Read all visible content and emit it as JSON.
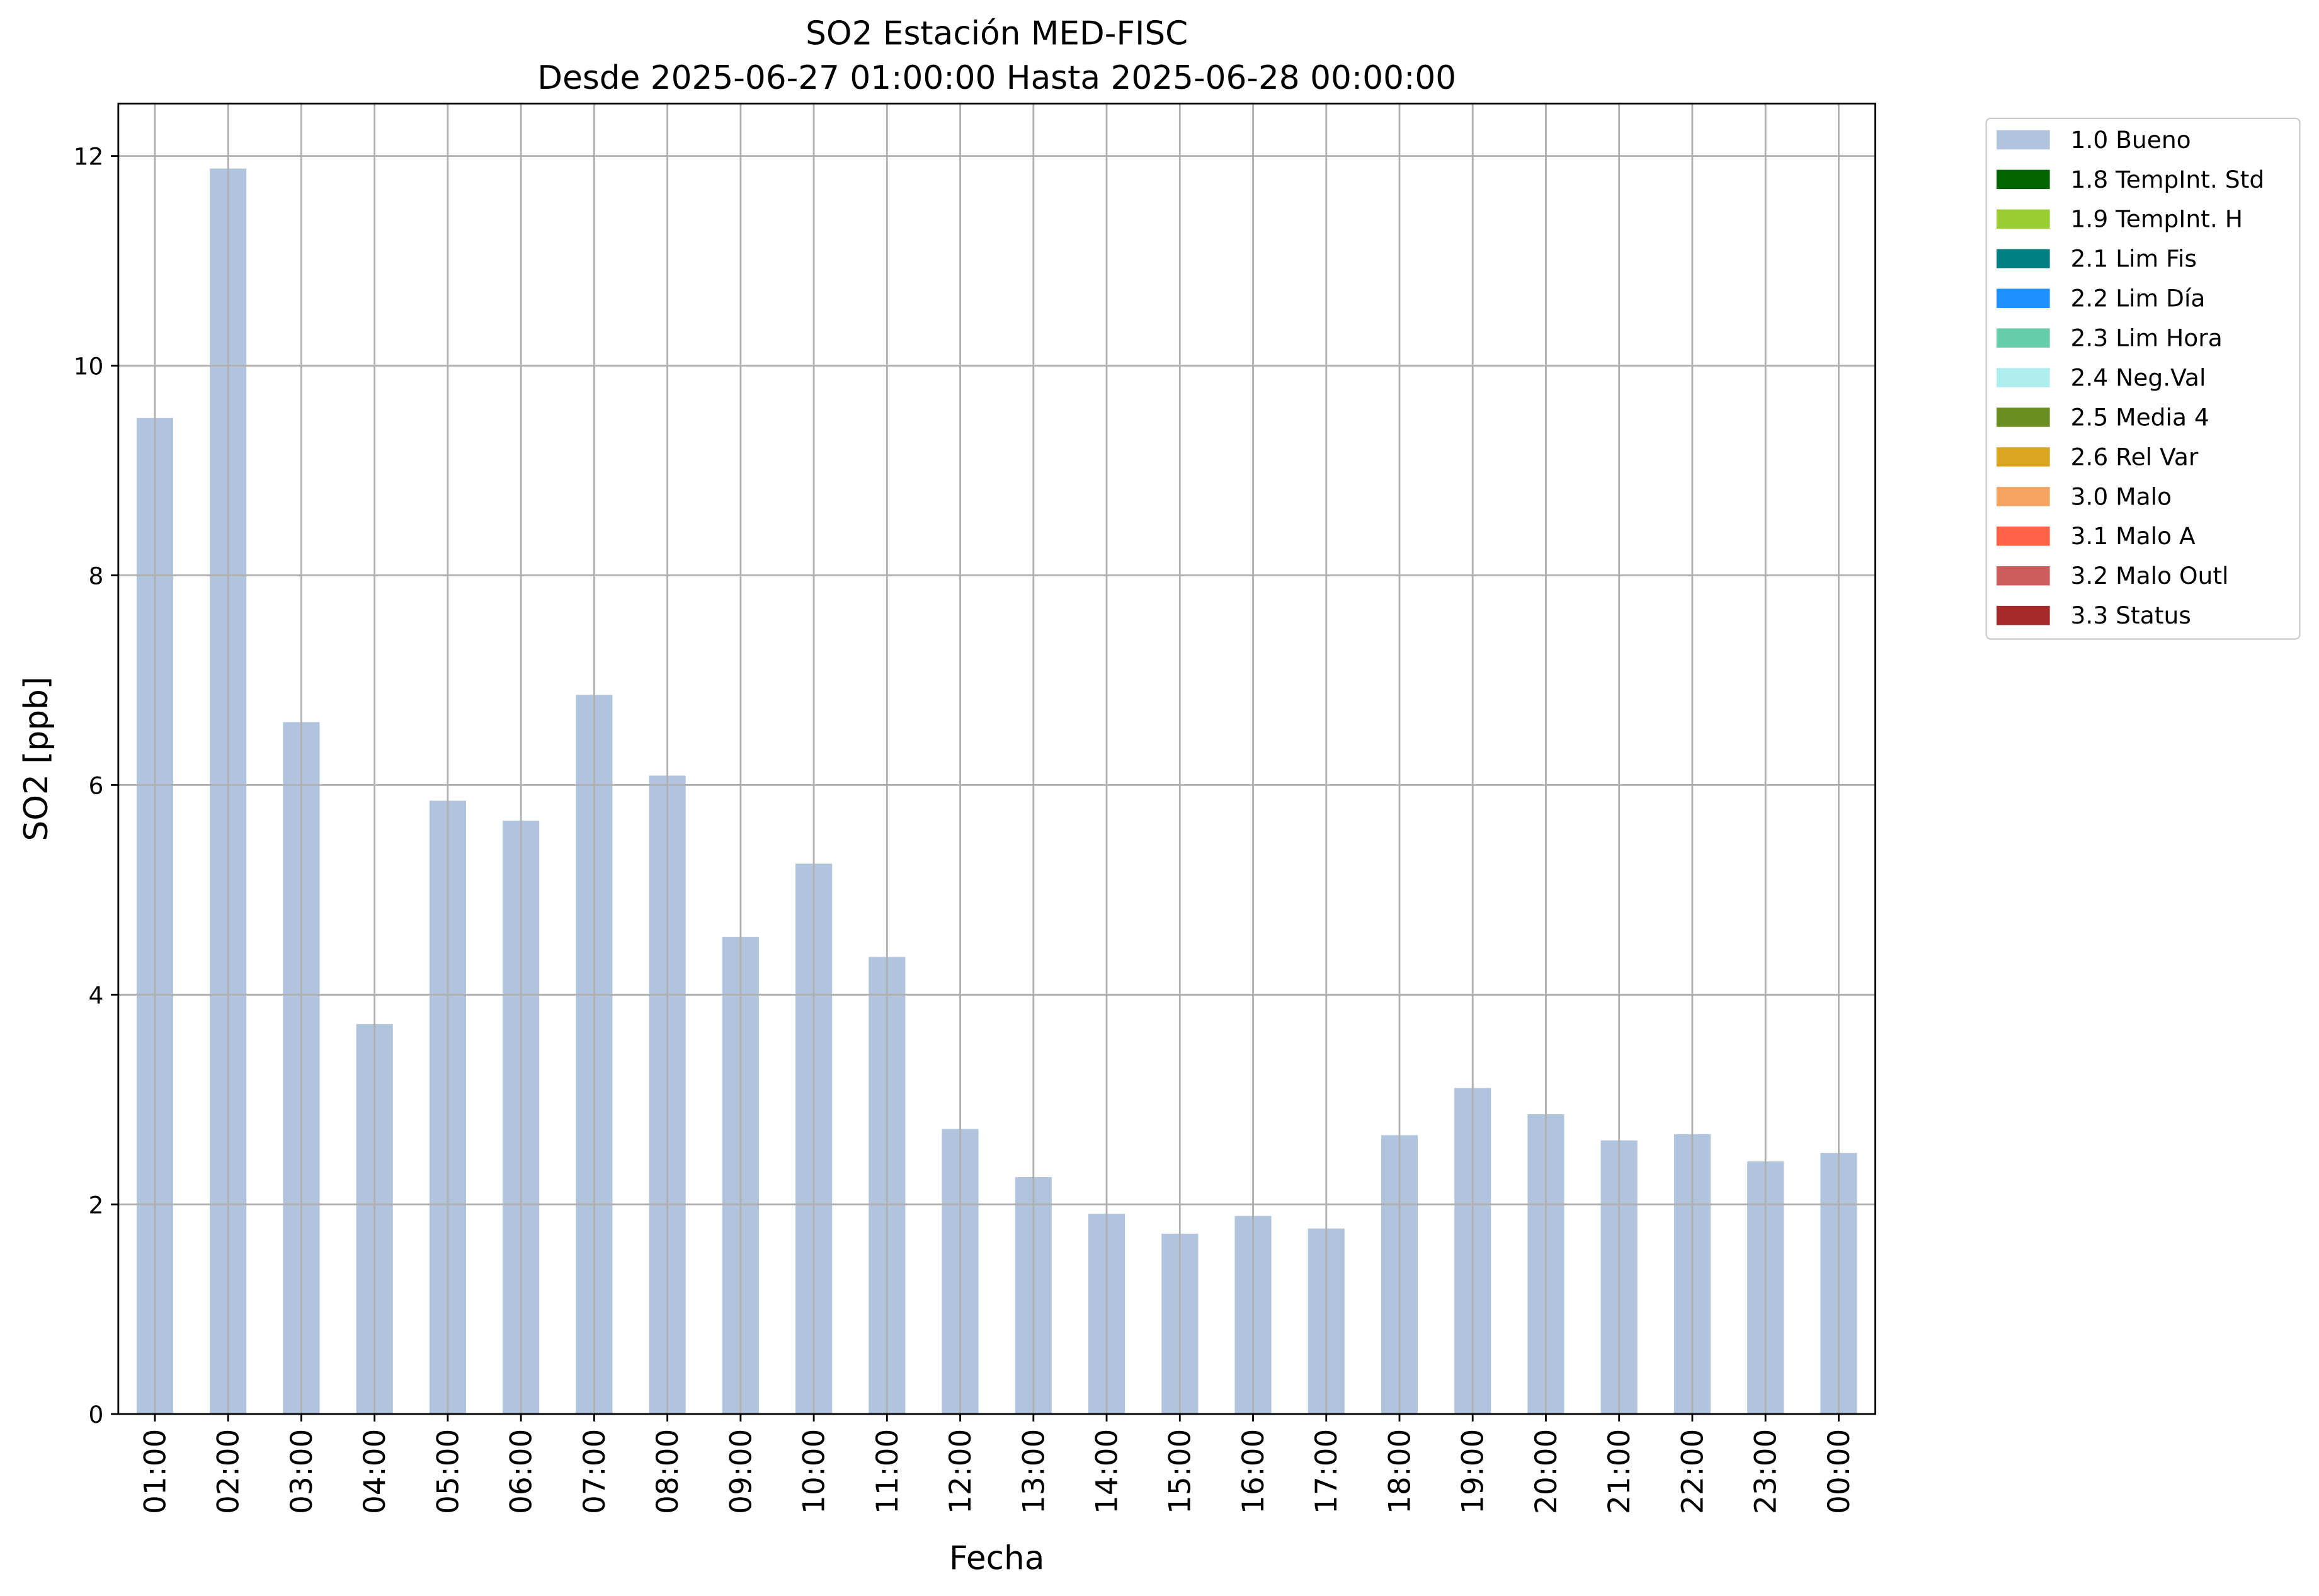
{
  "chart_data": {
    "type": "bar",
    "title": "SO2 Estación MED-FISC",
    "subtitle": "Desde 2025-06-27 01:00:00 Hasta 2025-06-28 00:00:00",
    "x_label": "Fecha",
    "y_label": "SO2 [ppb]",
    "categories": [
      "01:00",
      "02:00",
      "03:00",
      "04:00",
      "05:00",
      "06:00",
      "07:00",
      "08:00",
      "09:00",
      "10:00",
      "11:00",
      "12:00",
      "13:00",
      "14:00",
      "15:00",
      "16:00",
      "17:00",
      "18:00",
      "19:00",
      "20:00",
      "21:00",
      "22:00",
      "23:00",
      "00:00"
    ],
    "series": [
      {
        "name": "1.0 Bueno",
        "color": "#b0c4de",
        "values": [
          9.5,
          11.88,
          6.6,
          3.72,
          5.85,
          5.66,
          6.86,
          6.09,
          4.55,
          5.25,
          4.36,
          2.72,
          2.26,
          1.91,
          1.72,
          1.89,
          1.77,
          2.66,
          3.11,
          2.86,
          2.61,
          2.67,
          2.41,
          2.49
        ]
      },
      {
        "name": "1.8 TempInt. Std",
        "color": "#006400",
        "values": [
          0,
          0,
          0,
          0,
          0,
          0,
          0,
          0,
          0,
          0,
          0,
          0,
          0,
          0,
          0,
          0,
          0,
          0,
          0,
          0,
          0,
          0,
          0,
          0
        ]
      },
      {
        "name": "1.9 TempInt. H",
        "color": "#9acd32",
        "values": [
          0,
          0,
          0,
          0,
          0,
          0,
          0,
          0,
          0,
          0,
          0,
          0,
          0,
          0,
          0,
          0,
          0,
          0,
          0,
          0,
          0,
          0,
          0,
          0
        ]
      },
      {
        "name": "2.1 Lim Fis",
        "color": "#008080",
        "values": [
          0,
          0,
          0,
          0,
          0,
          0,
          0,
          0,
          0,
          0,
          0,
          0,
          0,
          0,
          0,
          0,
          0,
          0,
          0,
          0,
          0,
          0,
          0,
          0
        ]
      },
      {
        "name": "2.2 Lim Día",
        "color": "#1e90ff",
        "values": [
          0,
          0,
          0,
          0,
          0,
          0,
          0,
          0,
          0,
          0,
          0,
          0,
          0,
          0,
          0,
          0,
          0,
          0,
          0,
          0,
          0,
          0,
          0,
          0
        ]
      },
      {
        "name": "2.3 Lim Hora",
        "color": "#66cdaa",
        "values": [
          0,
          0,
          0,
          0,
          0,
          0,
          0,
          0,
          0,
          0,
          0,
          0,
          0,
          0,
          0,
          0,
          0,
          0,
          0,
          0,
          0,
          0,
          0,
          0
        ]
      },
      {
        "name": "2.4 Neg.Val",
        "color": "#afeeee",
        "values": [
          0,
          0,
          0,
          0,
          0,
          0,
          0,
          0,
          0,
          0,
          0,
          0,
          0,
          0,
          0,
          0,
          0,
          0,
          0,
          0,
          0,
          0,
          0,
          0
        ]
      },
      {
        "name": "2.5 Media 4",
        "color": "#6b8e23",
        "values": [
          0,
          0,
          0,
          0,
          0,
          0,
          0,
          0,
          0,
          0,
          0,
          0,
          0,
          0,
          0,
          0,
          0,
          0,
          0,
          0,
          0,
          0,
          0,
          0
        ]
      },
      {
        "name": "2.6 Rel Var",
        "color": "#daa520",
        "values": [
          0,
          0,
          0,
          0,
          0,
          0,
          0,
          0,
          0,
          0,
          0,
          0,
          0,
          0,
          0,
          0,
          0,
          0,
          0,
          0,
          0,
          0,
          0,
          0
        ]
      },
      {
        "name": "3.0 Malo",
        "color": "#f4a460",
        "values": [
          0,
          0,
          0,
          0,
          0,
          0,
          0,
          0,
          0,
          0,
          0,
          0,
          0,
          0,
          0,
          0,
          0,
          0,
          0,
          0,
          0,
          0,
          0,
          0
        ]
      },
      {
        "name": "3.1 Malo A",
        "color": "#ff6347",
        "values": [
          0,
          0,
          0,
          0,
          0,
          0,
          0,
          0,
          0,
          0,
          0,
          0,
          0,
          0,
          0,
          0,
          0,
          0,
          0,
          0,
          0,
          0,
          0,
          0
        ]
      },
      {
        "name": "3.2 Malo Outl",
        "color": "#cd5c5c",
        "values": [
          0,
          0,
          0,
          0,
          0,
          0,
          0,
          0,
          0,
          0,
          0,
          0,
          0,
          0,
          0,
          0,
          0,
          0,
          0,
          0,
          0,
          0,
          0,
          0
        ]
      },
      {
        "name": "3.3 Status",
        "color": "#a52a2a",
        "values": [
          0,
          0,
          0,
          0,
          0,
          0,
          0,
          0,
          0,
          0,
          0,
          0,
          0,
          0,
          0,
          0,
          0,
          0,
          0,
          0,
          0,
          0,
          0,
          0
        ]
      }
    ],
    "stacked": true,
    "ylim": [
      0,
      12.5
    ],
    "yticks": [
      0,
      2,
      4,
      6,
      8,
      10,
      12
    ],
    "grid": true,
    "legend": "outside-upper-right"
  }
}
